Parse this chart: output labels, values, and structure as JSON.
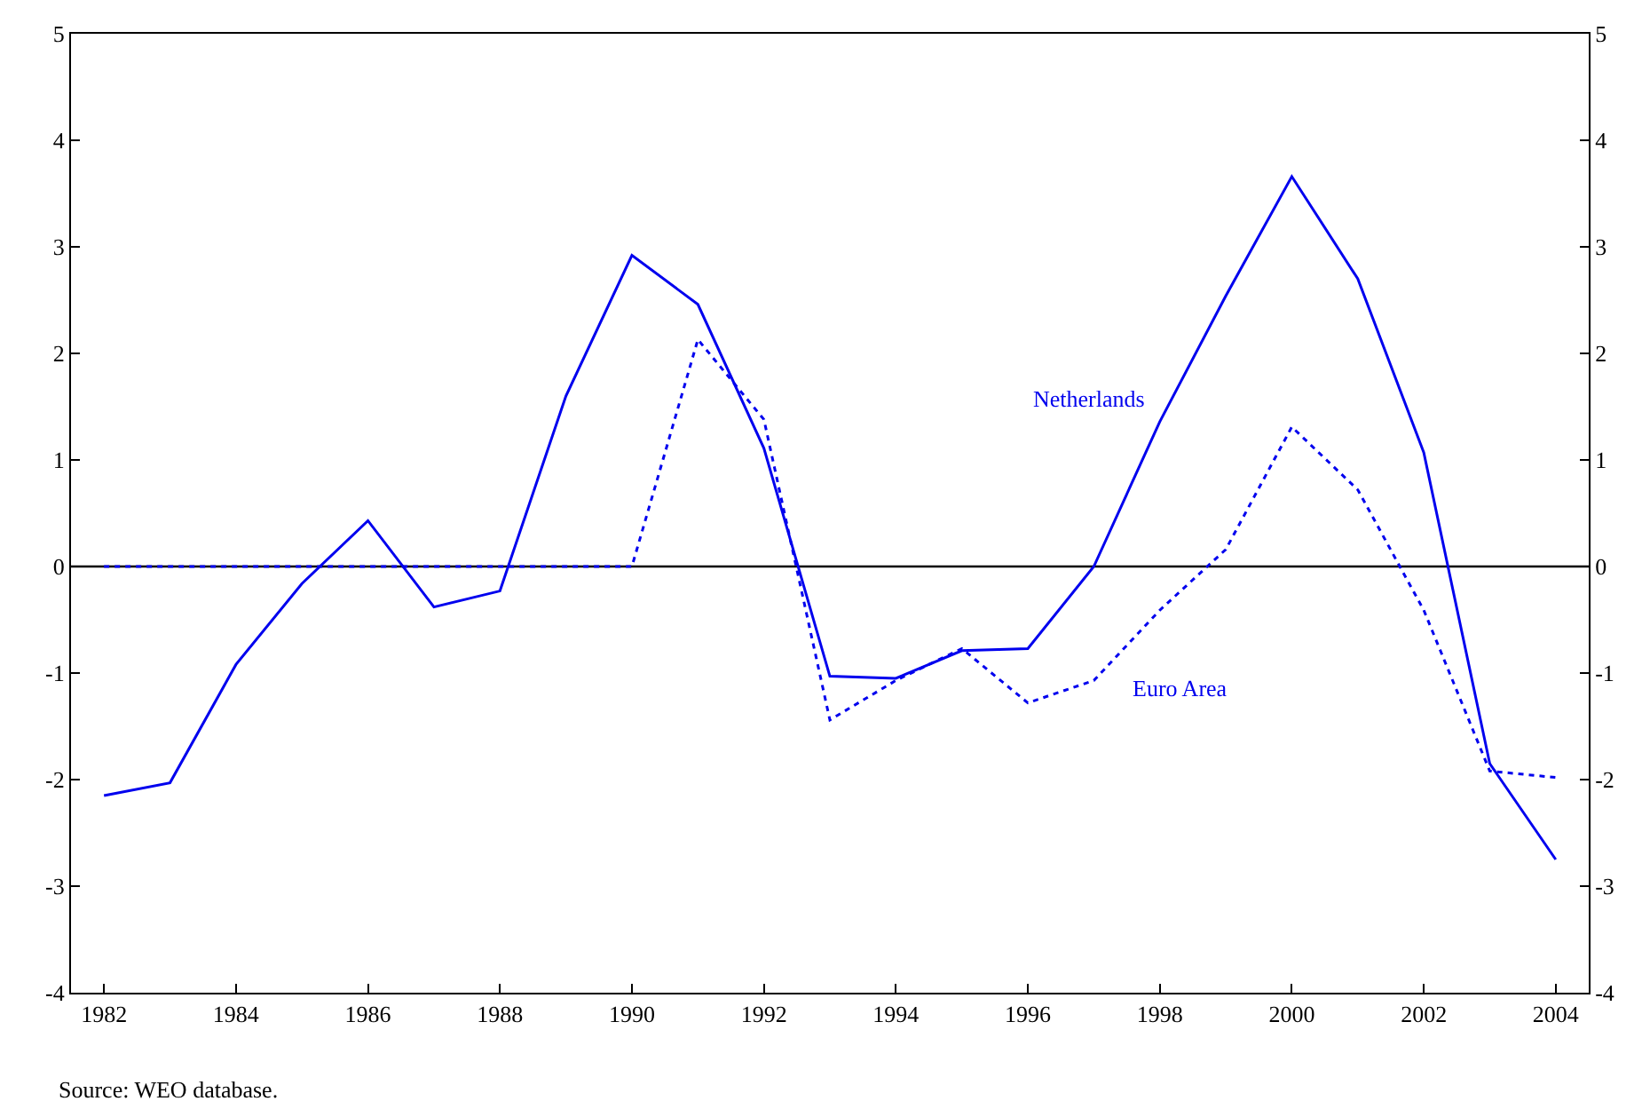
{
  "chart_data": {
    "type": "line",
    "x": [
      1982,
      1983,
      1984,
      1985,
      1986,
      1987,
      1988,
      1989,
      1990,
      1991,
      1992,
      1993,
      1994,
      1995,
      1996,
      1997,
      1998,
      1999,
      2000,
      2001,
      2002,
      2003,
      2004
    ],
    "series": [
      {
        "name": "Netherlands",
        "color": "#0000ee",
        "line_style": "solid",
        "values": [
          -2.15,
          -2.03,
          -0.92,
          -0.16,
          0.43,
          -0.38,
          -0.23,
          1.6,
          2.92,
          2.46,
          1.11,
          -1.03,
          -1.05,
          -0.79,
          -0.77,
          0,
          1.36,
          2.54,
          3.66,
          2.7,
          1.07,
          -1.85,
          -2.75
        ]
      },
      {
        "name": "Euro Area",
        "color": "#0000ee",
        "line_style": "dotted",
        "values": [
          0,
          0,
          0,
          0,
          0,
          0,
          0,
          0,
          0,
          2.13,
          1.38,
          -1.44,
          -1.07,
          -0.77,
          -1.28,
          -1.07,
          -0.41,
          0.16,
          1.31,
          0.72,
          -0.41,
          -1.92,
          -1.98
        ]
      }
    ],
    "xlim": [
      1981.5,
      2004.5
    ],
    "xticks": [
      1982,
      1984,
      1986,
      1988,
      1990,
      1992,
      1994,
      1996,
      1998,
      2000,
      2002,
      2004
    ],
    "ylim": [
      -4,
      5
    ],
    "yticks": [
      -4,
      -3,
      -2,
      -1,
      0,
      1,
      2,
      3,
      4,
      5
    ],
    "y2lim": [
      -4,
      5
    ],
    "y2ticks": [
      -4,
      -3,
      -2,
      -1,
      0,
      1,
      2,
      3,
      4,
      5
    ],
    "ref_lines": [
      {
        "axis": "y",
        "value": 0,
        "color": "#000000"
      }
    ],
    "grid": false,
    "legend": false,
    "marker": "none",
    "annotations": [
      "Source: WEO database."
    ]
  }
}
